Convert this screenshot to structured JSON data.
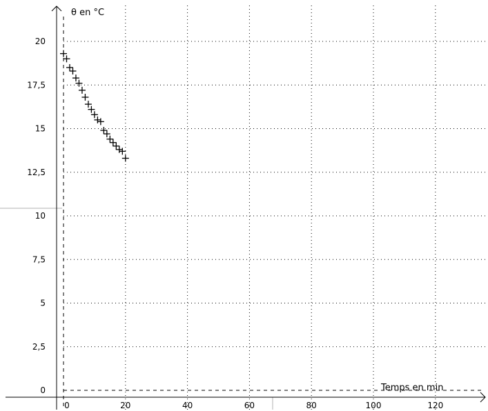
{
  "chart_data": {
    "type": "scatter",
    "title": "",
    "xlabel": "Temps en min",
    "ylabel": "θ en °C",
    "xlim": [
      0,
      135
    ],
    "ylim": [
      0,
      21.5
    ],
    "xticks": [
      0,
      20,
      40,
      60,
      80,
      100,
      120
    ],
    "xtick_labels": [
      "0",
      "20",
      "40",
      "60",
      "80",
      "100",
      "120"
    ],
    "yticks": [
      0,
      2.5,
      5,
      7.5,
      10,
      12.5,
      15,
      17.5,
      20
    ],
    "ytick_labels": [
      "0",
      "2,5",
      "5",
      "7,5",
      "10",
      "12,5",
      "15",
      "17,5",
      "20"
    ],
    "grid": true,
    "marker": "+",
    "color": "#000000",
    "series": [
      {
        "x": [
          0,
          1,
          2,
          3,
          4,
          5,
          6,
          7,
          8,
          9,
          10,
          11,
          12,
          13,
          14,
          15,
          16,
          17,
          18,
          19,
          20
        ],
        "y": [
          19.3,
          19.0,
          18.5,
          18.3,
          17.9,
          17.6,
          17.2,
          16.8,
          16.4,
          16.1,
          15.8,
          15.5,
          15.4,
          14.9,
          14.7,
          14.4,
          14.2,
          14.0,
          13.8,
          13.7,
          13.3
        ]
      }
    ]
  }
}
